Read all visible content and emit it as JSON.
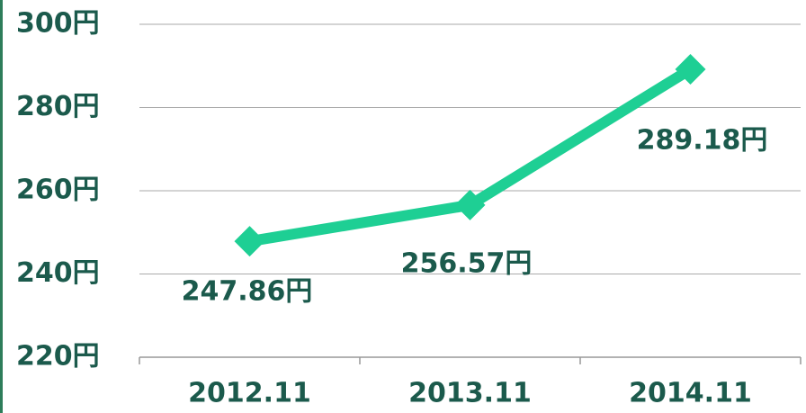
{
  "chart_data": {
    "type": "line",
    "categories": [
      "2012.11",
      "2013.11",
      "2014.11"
    ],
    "series": [
      {
        "color": "#1ecf94",
        "values": [
          247.86,
          256.57,
          289.18
        ],
        "value_labels": [
          "247.86円",
          "256.57円",
          "289.18円"
        ]
      }
    ],
    "ylim": [
      220,
      300
    ],
    "yticks": [
      {
        "value": 220,
        "label": "220円"
      },
      {
        "value": 240,
        "label": "240円"
      },
      {
        "value": 260,
        "label": "260円"
      },
      {
        "value": 280,
        "label": "280円"
      },
      {
        "value": 300,
        "label": "300円"
      }
    ],
    "grid": true
  }
}
